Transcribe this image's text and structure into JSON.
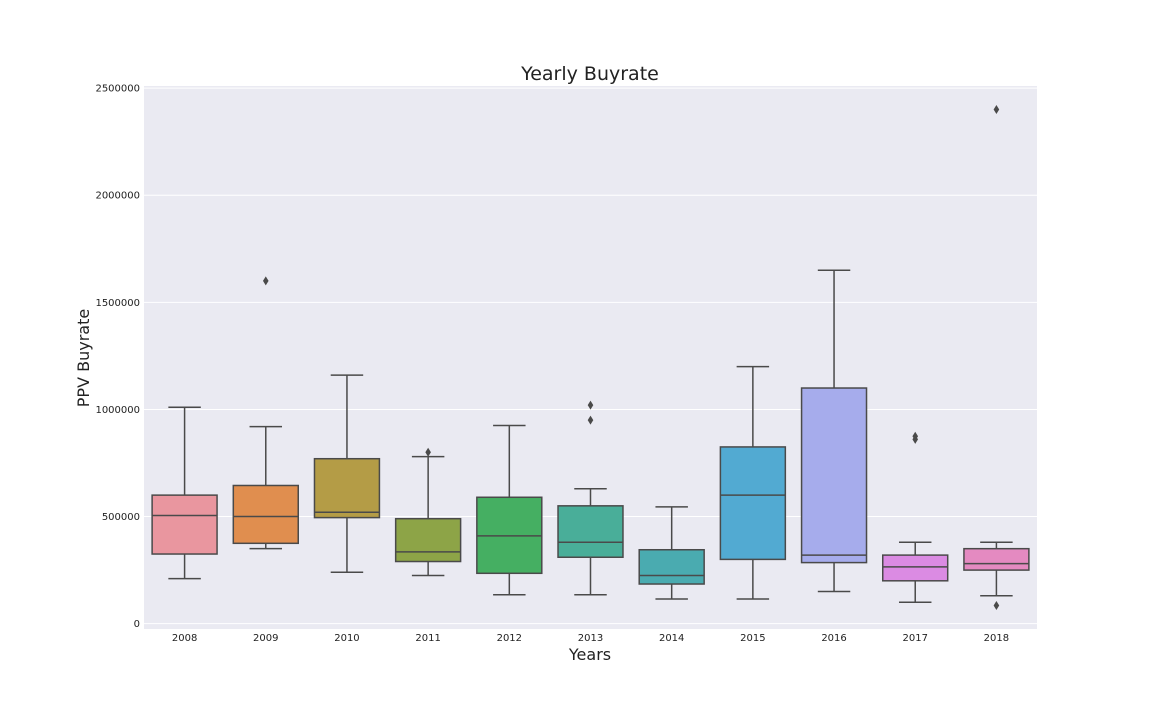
{
  "chart_data": {
    "type": "box",
    "title": "Yearly Buyrate",
    "xlabel": "Years",
    "ylabel": "PPV Buyrate",
    "ylim": [
      -25000,
      2510000
    ],
    "yticks": [
      0,
      500000,
      1000000,
      1500000,
      2000000,
      2500000
    ],
    "ytick_labels": [
      "0",
      "500000",
      "1000000",
      "1500000",
      "2000000",
      "2500000"
    ],
    "grid": true,
    "categories": [
      "2008",
      "2009",
      "2010",
      "2011",
      "2012",
      "2013",
      "2014",
      "2015",
      "2016",
      "2017",
      "2018"
    ],
    "boxes": [
      {
        "whisker_low": 210000,
        "q1": 325000,
        "median": 505000,
        "q3": 600000,
        "whisker_high": 1010000,
        "outliers": [],
        "color": "#E9969F"
      },
      {
        "whisker_low": 350000,
        "q1": 375000,
        "median": 500000,
        "q3": 645000,
        "whisker_high": 920000,
        "outliers": [
          1600000
        ],
        "color": "#E08E4F"
      },
      {
        "whisker_low": 240000,
        "q1": 495000,
        "median": 520000,
        "q3": 770000,
        "whisker_high": 1160000,
        "outliers": [],
        "color": "#B49C46"
      },
      {
        "whisker_low": 225000,
        "q1": 290000,
        "median": 335000,
        "q3": 490000,
        "whisker_high": 780000,
        "outliers": [
          800000
        ],
        "color": "#8DA447"
      },
      {
        "whisker_low": 135000,
        "q1": 235000,
        "median": 410000,
        "q3": 590000,
        "whisker_high": 925000,
        "outliers": [],
        "color": "#45AF62"
      },
      {
        "whisker_low": 135000,
        "q1": 310000,
        "median": 380000,
        "q3": 550000,
        "whisker_high": 630000,
        "outliers": [
          950000,
          1020000
        ],
        "color": "#49AE99"
      },
      {
        "whisker_low": 115000,
        "q1": 185000,
        "median": 225000,
        "q3": 345000,
        "whisker_high": 545000,
        "outliers": [],
        "color": "#4AABB0"
      },
      {
        "whisker_low": 115000,
        "q1": 300000,
        "median": 600000,
        "q3": 825000,
        "whisker_high": 1200000,
        "outliers": [],
        "color": "#52AAD2"
      },
      {
        "whisker_low": 150000,
        "q1": 285000,
        "median": 320000,
        "q3": 1100000,
        "whisker_high": 1650000,
        "outliers": [],
        "color": "#A6ACEC"
      },
      {
        "whisker_low": 100000,
        "q1": 200000,
        "median": 265000,
        "q3": 320000,
        "whisker_high": 380000,
        "outliers": [
          860000,
          875000
        ],
        "color": "#DB8BE3"
      },
      {
        "whisker_low": 130000,
        "q1": 250000,
        "median": 280000,
        "q3": 350000,
        "whisker_high": 380000,
        "outliers": [
          85000,
          2400000
        ],
        "color": "#E48AC1"
      }
    ]
  }
}
